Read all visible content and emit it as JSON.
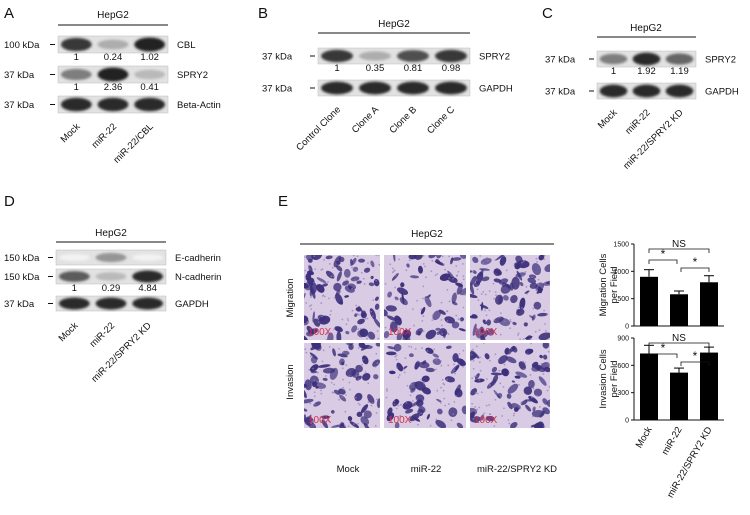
{
  "panels": [
    {
      "letter": "A",
      "header": "HepG2",
      "lanes": [
        "Mock",
        "miR-22",
        "miR-22/CBL"
      ],
      "rows": [
        {
          "kda": "100 kDa",
          "protein": "CBL",
          "quant": [
            "1",
            "0.24",
            "1.02"
          ],
          "intensity": [
            0.85,
            0.35,
            0.95
          ]
        },
        {
          "kda": "37  kDa",
          "protein": "SPRY2",
          "quant": [
            "1",
            "2.36",
            "0.41"
          ],
          "intensity": [
            0.55,
            0.95,
            0.3
          ]
        },
        {
          "kda": "37  kDa",
          "protein": "Beta-Actin",
          "quant": [],
          "intensity": [
            0.9,
            0.9,
            0.9
          ]
        }
      ]
    },
    {
      "letter": "B",
      "header": "HepG2",
      "lanes": [
        "Control Clone",
        "Clone A",
        "Clone B",
        "Clone C"
      ],
      "rows": [
        {
          "kda": "37  kDa",
          "protein": "SPRY2",
          "quant": [
            "1",
            "0.35",
            "0.81",
            "0.98"
          ],
          "intensity": [
            0.85,
            0.35,
            0.75,
            0.85
          ]
        },
        {
          "kda": "37  kDa",
          "protein": "GAPDH",
          "quant": [],
          "intensity": [
            0.9,
            0.9,
            0.9,
            0.9
          ]
        }
      ]
    },
    {
      "letter": "C",
      "header": "HepG2",
      "lanes": [
        "Mock",
        "miR-22",
        "miR-22/SPRY2 KD"
      ],
      "rows": [
        {
          "kda": "37  kDa",
          "protein": "SPRY2",
          "quant": [
            "1",
            "1.92",
            "1.19"
          ],
          "intensity": [
            0.55,
            0.9,
            0.65
          ]
        },
        {
          "kda": "37  kDa",
          "protein": "GAPDH",
          "quant": [],
          "intensity": [
            0.9,
            0.9,
            0.9
          ]
        }
      ]
    },
    {
      "letter": "D",
      "header": "HepG2",
      "lanes": [
        "Mock",
        "miR-22",
        "miR-22/SPRY2 KD"
      ],
      "rows": [
        {
          "kda": "150 kDa",
          "protein": "E-cadherin",
          "quant": [],
          "intensity": [
            0.05,
            0.45,
            0.05
          ]
        },
        {
          "kda": "150 kDa",
          "protein": "N-cadherin",
          "quant": [
            "1",
            "0.29",
            "4.84"
          ],
          "intensity": [
            0.7,
            0.3,
            0.9
          ]
        },
        {
          "kda": "37  kDa",
          "protein": "GAPDH",
          "quant": [],
          "intensity": [
            0.9,
            0.9,
            0.9
          ]
        }
      ]
    }
  ],
  "panel_e": {
    "letter": "E",
    "header": "HepG2",
    "rows": [
      "Migration",
      "Invasion"
    ],
    "columns": [
      "Mock",
      "miR-22",
      "miR-22/SPRY2 KD"
    ],
    "magnification": "100X",
    "stain_color": "#3c2f7a",
    "bg_color": "#d9cbe4"
  },
  "chart_data": [
    {
      "type": "bar",
      "categories": [
        "Mock",
        "miR-22",
        "miR-22/SPRY2 KD"
      ],
      "values": [
        900,
        580,
        800
      ],
      "errors": [
        130,
        60,
        120
      ],
      "ylabel": "Migration Cells per Field",
      "ylim": [
        0,
        1500
      ],
      "yticks": [
        "0",
        "500",
        "1000",
        "1500"
      ],
      "significance": [
        "*",
        "*",
        "NS"
      ]
    },
    {
      "type": "bar",
      "categories": [
        "Mock",
        "miR-22",
        "miR-22/SPRY2 KD"
      ],
      "values": [
        730,
        520,
        740
      ],
      "errors": [
        90,
        50,
        60
      ],
      "ylabel": "Invasion Cells per Field",
      "ylim": [
        0,
        900
      ],
      "yticks": [
        "0",
        "300",
        "600",
        "900"
      ],
      "significance": [
        "*",
        "*",
        "NS"
      ]
    }
  ]
}
